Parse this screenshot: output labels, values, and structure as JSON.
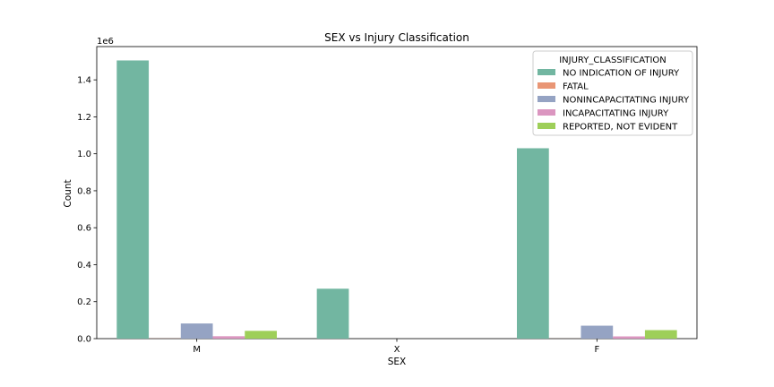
{
  "chart_data": {
    "type": "bar",
    "title": "SEX vs Injury Classification",
    "xlabel": "SEX",
    "ylabel": "Count",
    "y_scale_label": "1e6",
    "categories": [
      "M",
      "X",
      "F"
    ],
    "ylim": [
      0,
      1.58
    ],
    "yticks": [
      "0.0",
      "0.2",
      "0.4",
      "0.6",
      "0.8",
      "1.0",
      "1.2",
      "1.4"
    ],
    "legend": {
      "title": "INJURY_CLASSIFICATION",
      "placement": "top-right"
    },
    "series": [
      {
        "name": "NO INDICATION OF INJURY",
        "color": "#72b6a1",
        "values": [
          1.505,
          0.27,
          1.03
        ]
      },
      {
        "name": "FATAL",
        "color": "#e99675",
        "values": [
          0.0007,
          0.0,
          0.0003
        ]
      },
      {
        "name": "NONINCAPACITATING INJURY",
        "color": "#95a3c3",
        "values": [
          0.082,
          0.0,
          0.07
        ]
      },
      {
        "name": "INCAPACITATING INJURY",
        "color": "#db96c0",
        "values": [
          0.013,
          0.0,
          0.012
        ]
      },
      {
        "name": "REPORTED, NOT EVIDENT",
        "color": "#9ecf59",
        "values": [
          0.042,
          0.0,
          0.046
        ]
      }
    ]
  }
}
